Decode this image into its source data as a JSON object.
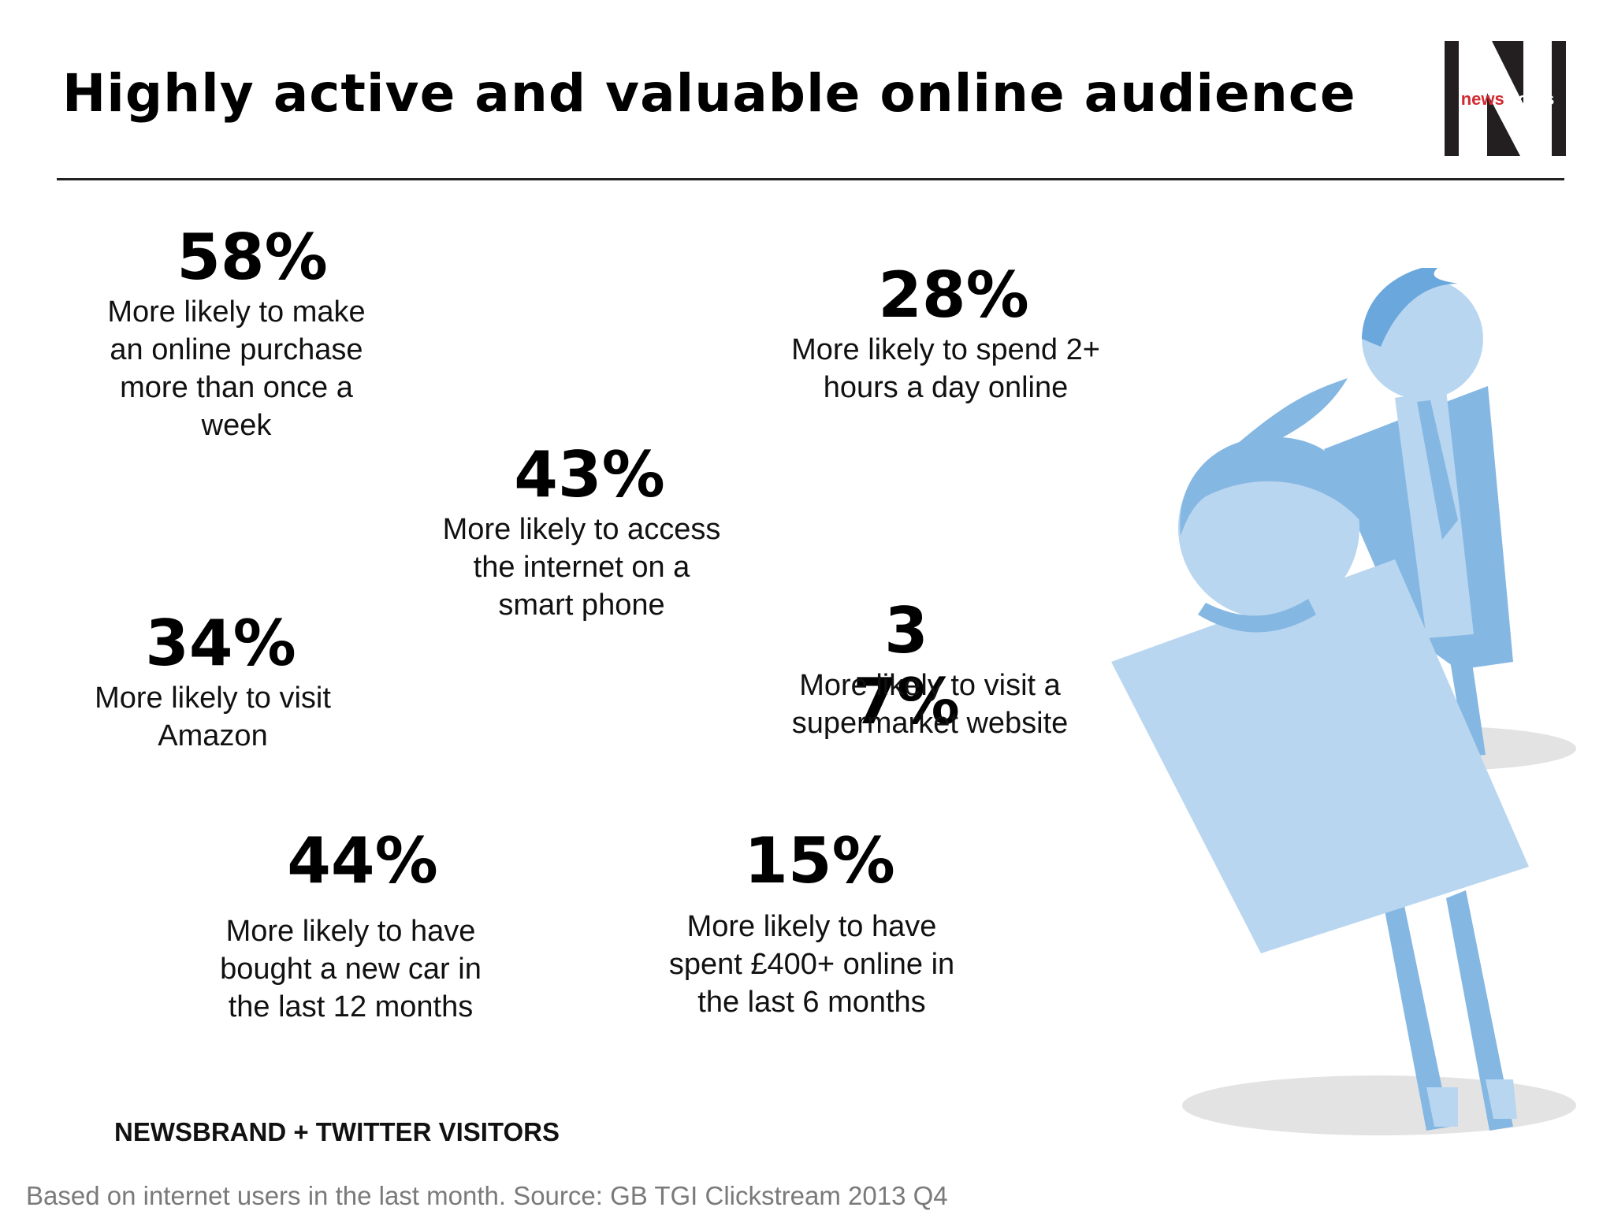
{
  "title": "Highly active and valuable online audience",
  "logo": {
    "text_red": "news",
    "text_white": "works",
    "letter": "N"
  },
  "stats": [
    {
      "percent": "58%",
      "description": "More likely to make an online purchase more than once a week"
    },
    {
      "percent": "28%",
      "description": "More likely to spend 2+ hours a day online"
    },
    {
      "percent": "43%",
      "description": "More likely to access the internet on a smart phone"
    },
    {
      "percent": "34%",
      "description": "More likely to visit Amazon"
    },
    {
      "percent": "37%",
      "description": "More likely to visit a supermarket website"
    },
    {
      "percent": "44%",
      "description": "More likely to have bought a new car in the last 12 months"
    },
    {
      "percent": "15%",
      "description": "More likely to have spent £400+ online in the last 6 months"
    }
  ],
  "footer_label": "NEWSBRAND + TWITTER VISITORS",
  "source": "Based on internet users in the last month. Source: GB TGI Clickstream 2013 Q4",
  "colors": {
    "figure_light": "#b9d6f0",
    "figure_mid": "#85b7e3",
    "figure_dark": "#6aa7dc",
    "shadow": "#e3e3e3",
    "logo_bg": "#231f20",
    "logo_red": "#d22a30"
  }
}
